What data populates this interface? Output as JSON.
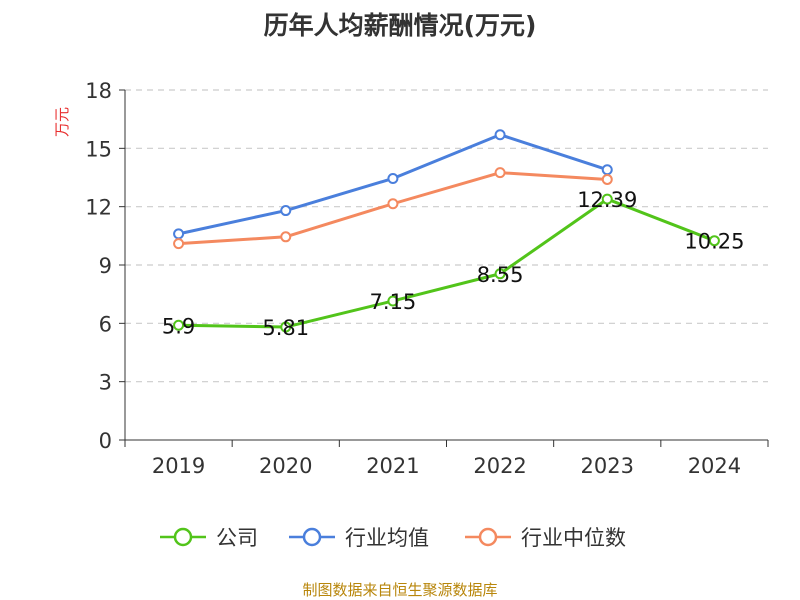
{
  "chart_data": {
    "type": "line",
    "title": "历年人均薪酬情况(万元)",
    "ylabel": "万元",
    "ylim": [
      0,
      18
    ],
    "yticks": [
      "0",
      "3",
      "6",
      "9",
      "12",
      "15",
      "18"
    ],
    "categories": [
      "2019",
      "2020",
      "2021",
      "2022",
      "2023",
      "2024"
    ],
    "grid": true,
    "legend_position": "bottom",
    "series": [
      {
        "name": "公司",
        "color": "#52c41a",
        "values": [
          5.9,
          5.81,
          7.15,
          8.55,
          12.39,
          10.25
        ],
        "labels": [
          "5.9",
          "5.81",
          "7.15",
          "8.55",
          "12.39",
          "10.25"
        ]
      },
      {
        "name": "行业均值",
        "color": "#4a7fdc",
        "values": [
          10.6,
          11.8,
          13.45,
          15.7,
          13.9,
          null
        ]
      },
      {
        "name": "行业中位数",
        "color": "#f4895f",
        "values": [
          10.1,
          10.45,
          12.15,
          13.75,
          13.4,
          null
        ]
      }
    ]
  },
  "source_text": "制图数据来自恒生聚源数据库",
  "colors": {
    "axis": "#333333",
    "grid": "#cccccc",
    "unit_label": "#e83030"
  }
}
